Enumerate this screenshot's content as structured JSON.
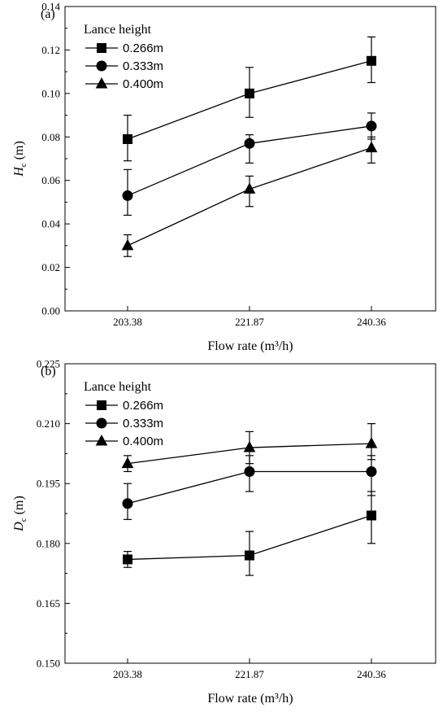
{
  "chart_data": [
    {
      "type": "line",
      "panel_label": "(a)",
      "categories": [
        "203.38",
        "221.87",
        "240.36"
      ],
      "xlabel": "Flow rate (m³/h)",
      "ylabel_main": "H",
      "ylabel_sub": "c",
      "ylabel_unit": " (m)",
      "ylim": [
        0,
        0.14
      ],
      "yticks": [
        0.0,
        0.02,
        0.04,
        0.06,
        0.08,
        0.1,
        0.12,
        0.14
      ],
      "ytick_labels": [
        "0.00",
        "0.02",
        "0.04",
        "0.06",
        "0.08",
        "0.10",
        "0.12",
        "0.14"
      ],
      "legend_title": "Lance height",
      "legend_position": "top-left",
      "series": [
        {
          "name": "0.266m",
          "marker": "square",
          "values": [
            0.079,
            0.1,
            0.115
          ],
          "err_lower": [
            0.069,
            0.089,
            0.105
          ],
          "err_upper": [
            0.09,
            0.112,
            0.126
          ]
        },
        {
          "name": "0.333m",
          "marker": "circle",
          "values": [
            0.053,
            0.077,
            0.085
          ],
          "err_lower": [
            0.044,
            0.068,
            0.079
          ],
          "err_upper": [
            0.065,
            0.081,
            0.091
          ]
        },
        {
          "name": "0.400m",
          "marker": "triangle",
          "values": [
            0.03,
            0.056,
            0.075
          ],
          "err_lower": [
            0.025,
            0.048,
            0.068
          ],
          "err_upper": [
            0.035,
            0.062,
            0.08
          ]
        }
      ]
    },
    {
      "type": "line",
      "panel_label": "(b)",
      "categories": [
        "203.38",
        "221.87",
        "240.36"
      ],
      "xlabel": "Flow rate (m³/h)",
      "ylabel_main": "D",
      "ylabel_sub": "c",
      "ylabel_unit": " (m)",
      "ylim": [
        0.15,
        0.225
      ],
      "yticks": [
        0.15,
        0.165,
        0.18,
        0.195,
        0.21,
        0.225
      ],
      "ytick_labels": [
        "0.150",
        "0.165",
        "0.180",
        "0.195",
        "0.210",
        "0.225"
      ],
      "legend_title": "Lance height",
      "legend_position": "top-left",
      "series": [
        {
          "name": "0.266m",
          "marker": "square",
          "values": [
            0.176,
            0.177,
            0.187
          ],
          "err_lower": [
            0.174,
            0.172,
            0.18
          ],
          "err_upper": [
            0.178,
            0.183,
            0.193
          ]
        },
        {
          "name": "0.333m",
          "marker": "circle",
          "values": [
            0.19,
            0.198,
            0.198
          ],
          "err_lower": [
            0.186,
            0.193,
            0.192
          ],
          "err_upper": [
            0.195,
            0.202,
            0.202
          ]
        },
        {
          "name": "0.400m",
          "marker": "triangle",
          "values": [
            0.2,
            0.204,
            0.205
          ],
          "err_lower": [
            0.198,
            0.2,
            0.201
          ],
          "err_upper": [
            0.202,
            0.208,
            0.21
          ]
        }
      ]
    }
  ]
}
